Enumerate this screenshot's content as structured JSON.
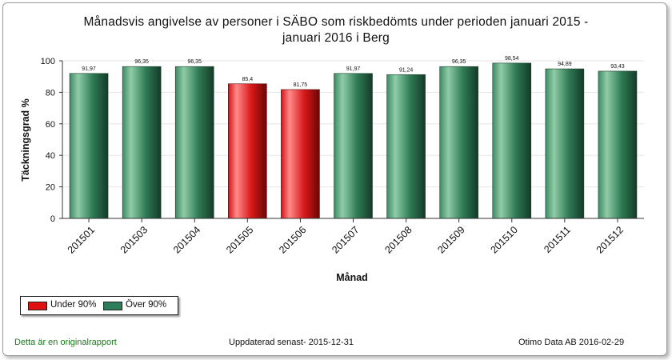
{
  "chart_data": {
    "type": "bar",
    "title_line1": "Månadsvis angivelse av personer i SÄBO som riskbedömts under perioden  januari 2015 -",
    "title_line2": "januari 2016 i  Berg",
    "xlabel": "Månad",
    "ylabel": "Täckningsgrad %",
    "ylim": [
      0,
      100
    ],
    "yticks": [
      "0",
      "20",
      "40",
      "60",
      "80",
      "100"
    ],
    "threshold": 90,
    "categories": [
      "201501",
      "201503",
      "201504",
      "201505",
      "201506",
      "201507",
      "201508",
      "201509",
      "201510",
      "201511",
      "201512"
    ],
    "values": [
      91.97,
      96.35,
      96.35,
      85.4,
      81.75,
      91.97,
      91.24,
      96.35,
      98.54,
      94.89,
      93.43
    ],
    "value_labels": [
      "91,97",
      "96,35",
      "96,35",
      "85,4",
      "81,75",
      "91,97",
      "91,24",
      "96,35",
      "98,54",
      "94,89",
      "93,43"
    ],
    "grid": true,
    "legend_position": "bottom-left",
    "legend": [
      {
        "label": "Under 90%",
        "color": "#e01010"
      },
      {
        "label": "Över 90%",
        "color": "#2e7d5a"
      }
    ]
  },
  "footer": {
    "left": "Detta är en originalrapport",
    "middle": "Uppdaterad senast- 2015-12-31",
    "right": "Otimo Data AB 2016-02-29"
  }
}
